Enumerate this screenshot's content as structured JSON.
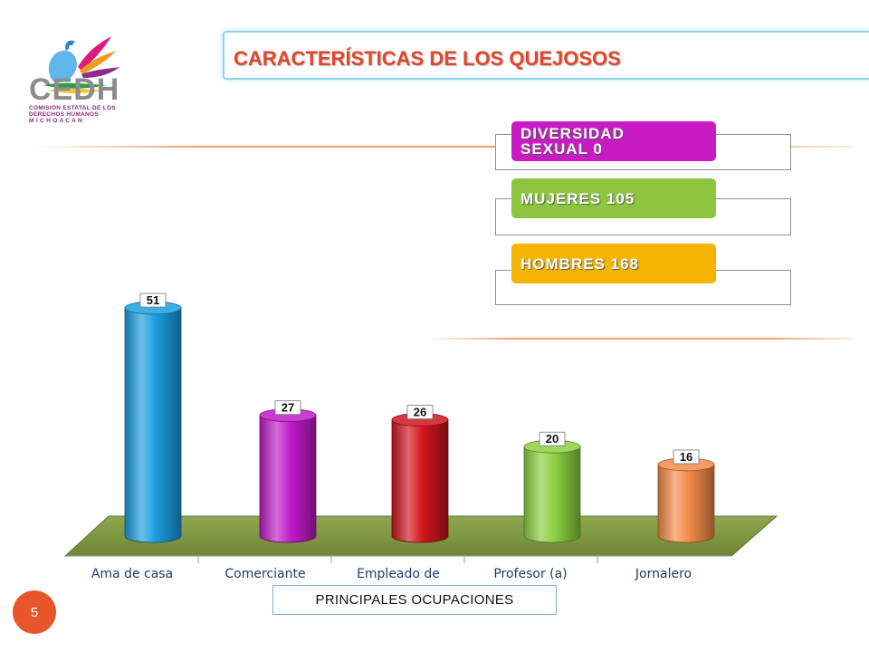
{
  "logo": {
    "wordmark": "CEDH",
    "line1": "COMISION ESTATAL DE LOS",
    "line2": "DERECHOS HUMANOS",
    "line3": "M I C H O A C A N"
  },
  "title": "CARACTERÍSTICAS DE LOS QUEJOSOS",
  "stats": [
    {
      "label": "DIVERSIDAD\nSEXUAL     0",
      "color": "#c81bc4"
    },
    {
      "label": "MUJERES   105",
      "color": "#8cc63f"
    },
    {
      "label": "HOMBRES  168",
      "color": "#f5b400"
    }
  ],
  "page_number": "5",
  "chart_data": {
    "type": "bar",
    "categories": [
      "Ama de casa",
      "Comerciante",
      "Empleado de",
      "Profesor (a)",
      "Jornalero"
    ],
    "values": [
      51,
      27,
      26,
      20,
      16
    ],
    "value_labels": [
      "51",
      "27",
      "26",
      "20",
      "16"
    ],
    "colors": [
      "#1a9ee0",
      "#c11bc8",
      "#d0141c",
      "#8cd040",
      "#f28a48"
    ],
    "xlabel": "PRINCIPALES OCUPACIONES",
    "ylabel": "",
    "grid": false,
    "style": "3d-cylinder"
  }
}
